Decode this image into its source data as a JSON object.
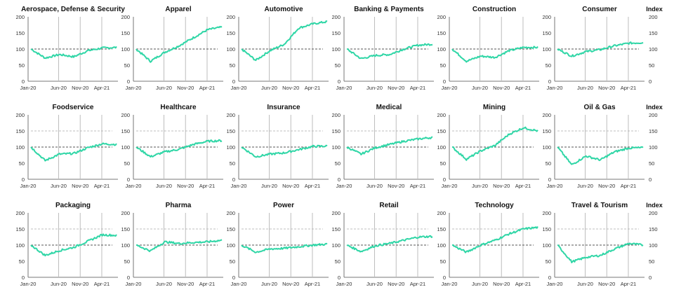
{
  "colors": {
    "line": "#2fd6a6",
    "baseline": "#555555",
    "ref150": "#aaaaaa",
    "frame": "#777777"
  },
  "axis": {
    "y_ticks": [
      "0",
      "50",
      "100",
      "150",
      "200"
    ],
    "x_ticks": [
      "Jan-20",
      "Jun-20",
      "Nov-20",
      "Apr-21"
    ],
    "right_label": "Index"
  },
  "chart_data": [
    {
      "type": "line",
      "title": "Aerospace, Defense & Security",
      "ylim": [
        0,
        200
      ],
      "x": [
        "Jan-20",
        "Apr-20",
        "Jul-20",
        "Oct-20",
        "Jan-21",
        "Apr-21",
        "Jun-21"
      ],
      "series": [
        {
          "values": [
            100,
            72,
            83,
            76,
            95,
            103,
            105
          ]
        }
      ]
    },
    {
      "type": "line",
      "title": "Apparel",
      "ylim": [
        0,
        200
      ],
      "x": [
        "Jan-20",
        "Apr-20",
        "Jul-20",
        "Oct-20",
        "Jan-21",
        "Apr-21",
        "Jun-21"
      ],
      "series": [
        {
          "values": [
            100,
            62,
            90,
            110,
            135,
            160,
            168
          ]
        }
      ]
    },
    {
      "type": "line",
      "title": "Automotive",
      "ylim": [
        0,
        200
      ],
      "x": [
        "Jan-20",
        "Apr-20",
        "Jul-20",
        "Oct-20",
        "Jan-21",
        "Apr-21",
        "Jun-21"
      ],
      "series": [
        {
          "values": [
            100,
            65,
            95,
            115,
            165,
            178,
            185
          ]
        }
      ]
    },
    {
      "type": "line",
      "title": "Banking & Payments",
      "ylim": [
        0,
        200
      ],
      "x": [
        "Jan-20",
        "Apr-20",
        "Jul-20",
        "Oct-20",
        "Jan-21",
        "Apr-21",
        "Jun-21"
      ],
      "series": [
        {
          "values": [
            100,
            70,
            80,
            83,
            100,
            112,
            115
          ]
        }
      ]
    },
    {
      "type": "line",
      "title": "Construction",
      "ylim": [
        0,
        200
      ],
      "x": [
        "Jan-20",
        "Apr-20",
        "Jul-20",
        "Oct-20",
        "Jan-21",
        "Apr-21",
        "Jun-21"
      ],
      "series": [
        {
          "values": [
            100,
            62,
            78,
            74,
            95,
            105,
            105
          ]
        }
      ]
    },
    {
      "type": "line",
      "title": "Consumer",
      "ylim": [
        0,
        200
      ],
      "x": [
        "Jan-20",
        "Apr-20",
        "Jul-20",
        "Oct-20",
        "Jan-21",
        "Apr-21",
        "Jun-21"
      ],
      "series": [
        {
          "values": [
            100,
            78,
            92,
            98,
            110,
            118,
            120
          ]
        }
      ]
    },
    {
      "type": "line",
      "title": "Foodservice",
      "ylim": [
        0,
        200
      ],
      "x": [
        "Jan-20",
        "Apr-20",
        "Jul-20",
        "Oct-20",
        "Jan-21",
        "Apr-21",
        "Jun-21"
      ],
      "series": [
        {
          "values": [
            100,
            58,
            78,
            80,
            98,
            110,
            108
          ]
        }
      ]
    },
    {
      "type": "line",
      "title": "Healthcare",
      "ylim": [
        0,
        200
      ],
      "x": [
        "Jan-20",
        "Apr-20",
        "Jul-20",
        "Oct-20",
        "Jan-21",
        "Apr-21",
        "Jun-21"
      ],
      "series": [
        {
          "values": [
            100,
            70,
            85,
            93,
            108,
            118,
            120
          ]
        }
      ]
    },
    {
      "type": "line",
      "title": "Insurance",
      "ylim": [
        0,
        200
      ],
      "x": [
        "Jan-20",
        "Apr-20",
        "Jul-20",
        "Oct-20",
        "Jan-21",
        "Apr-21",
        "Jun-21"
      ],
      "series": [
        {
          "values": [
            100,
            70,
            78,
            82,
            92,
            102,
            103
          ]
        }
      ]
    },
    {
      "type": "line",
      "title": "Medical",
      "ylim": [
        0,
        200
      ],
      "x": [
        "Jan-20",
        "Apr-20",
        "Jul-20",
        "Oct-20",
        "Jan-21",
        "Apr-21",
        "Jun-21"
      ],
      "series": [
        {
          "values": [
            100,
            78,
            98,
            108,
            118,
            125,
            130
          ]
        }
      ]
    },
    {
      "type": "line",
      "title": "Mining",
      "ylim": [
        0,
        200
      ],
      "x": [
        "Jan-20",
        "Apr-20",
        "Jul-20",
        "Oct-20",
        "Jan-21",
        "Apr-21",
        "Jun-21"
      ],
      "series": [
        {
          "values": [
            100,
            62,
            88,
            105,
            140,
            160,
            150
          ]
        }
      ]
    },
    {
      "type": "line",
      "title": "Oil & Gas",
      "ylim": [
        0,
        200
      ],
      "x": [
        "Jan-20",
        "Apr-20",
        "Jul-20",
        "Oct-20",
        "Jan-21",
        "Apr-21",
        "Jun-21"
      ],
      "series": [
        {
          "values": [
            100,
            45,
            72,
            60,
            85,
            97,
            98
          ]
        }
      ]
    },
    {
      "type": "line",
      "title": "Packaging",
      "ylim": [
        0,
        200
      ],
      "x": [
        "Jan-20",
        "Apr-20",
        "Jul-20",
        "Oct-20",
        "Jan-21",
        "Apr-21",
        "Jun-21"
      ],
      "series": [
        {
          "values": [
            100,
            68,
            83,
            93,
            112,
            132,
            130
          ]
        }
      ]
    },
    {
      "type": "line",
      "title": "Pharma",
      "ylim": [
        0,
        200
      ],
      "x": [
        "Jan-20",
        "Apr-20",
        "Jul-20",
        "Oct-20",
        "Jan-21",
        "Apr-21",
        "Jun-21"
      ],
      "series": [
        {
          "values": [
            100,
            82,
            110,
            105,
            108,
            110,
            115
          ]
        }
      ]
    },
    {
      "type": "line",
      "title": "Power",
      "ylim": [
        0,
        200
      ],
      "x": [
        "Jan-20",
        "Apr-20",
        "Jul-20",
        "Oct-20",
        "Jan-21",
        "Apr-21",
        "Jun-21"
      ],
      "series": [
        {
          "values": [
            100,
            78,
            88,
            90,
            95,
            100,
            103
          ]
        }
      ]
    },
    {
      "type": "line",
      "title": "Retail",
      "ylim": [
        0,
        200
      ],
      "x": [
        "Jan-20",
        "Apr-20",
        "Jul-20",
        "Oct-20",
        "Jan-21",
        "Apr-21",
        "Jun-21"
      ],
      "series": [
        {
          "values": [
            100,
            80,
            98,
            105,
            115,
            125,
            127
          ]
        }
      ]
    },
    {
      "type": "line",
      "title": "Technology",
      "ylim": [
        0,
        200
      ],
      "x": [
        "Jan-20",
        "Apr-20",
        "Jul-20",
        "Oct-20",
        "Jan-21",
        "Apr-21",
        "Jun-21"
      ],
      "series": [
        {
          "values": [
            100,
            78,
            100,
            115,
            135,
            150,
            155
          ]
        }
      ]
    },
    {
      "type": "line",
      "title": "Travel & Tourism",
      "ylim": [
        0,
        200
      ],
      "x": [
        "Jan-20",
        "Apr-20",
        "Jul-20",
        "Oct-20",
        "Jan-21",
        "Apr-21",
        "Jun-21"
      ],
      "series": [
        {
          "values": [
            100,
            48,
            62,
            68,
            88,
            105,
            100
          ]
        }
      ]
    }
  ]
}
